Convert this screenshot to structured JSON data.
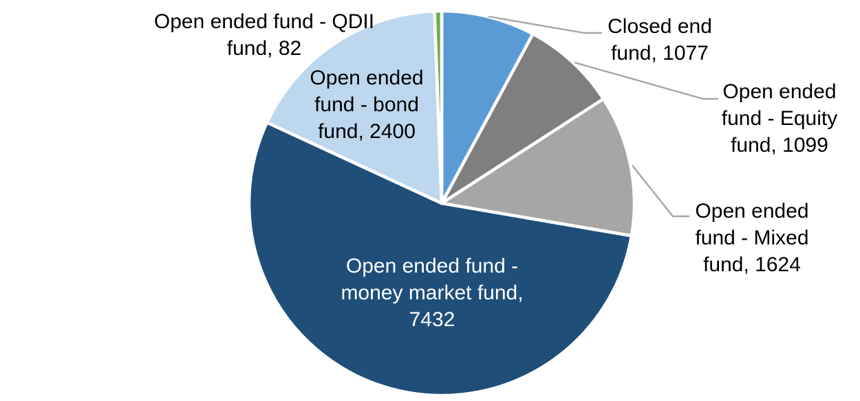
{
  "figure": {
    "background": "#FFFFFF",
    "text_color": "#000000"
  },
  "chart_data": {
    "type": "pie",
    "title": "",
    "start_angle_deg": 0,
    "direction": "clockwise",
    "slice_border_color": "#FFFFFF",
    "leader_line_color": "#A6A6A6",
    "legend": "none",
    "total": 13714,
    "slices": [
      {
        "key": "closed_end",
        "label": "Closed end fund",
        "value": 1077,
        "color": "#5B9BD5"
      },
      {
        "key": "equity",
        "label": "Open ended fund - Equity fund",
        "value": 1099,
        "color": "#7F7F7F"
      },
      {
        "key": "mixed",
        "label": "Open ended fund - Mixed fund",
        "value": 1624,
        "color": "#A6A6A6"
      },
      {
        "key": "money_market",
        "label": "Open ended fund - money market fund",
        "value": 7432,
        "color": "#1F4E79"
      },
      {
        "key": "bond",
        "label": "Open ended fund - bond fund",
        "value": 2400,
        "color": "#BDD7EE"
      },
      {
        "key": "qdii",
        "label": "Open ended fund - QDII fund",
        "value": 82,
        "color": "#70AD47"
      }
    ],
    "data_labels": {
      "qdii": {
        "lines": [
          "Open ended fund - QDII",
          "fund, 82"
        ],
        "color": "#000000"
      },
      "bond": {
        "lines": [
          "Open ended",
          "fund - bond",
          "fund, 2400"
        ],
        "color": "#000000"
      },
      "closed_end": {
        "lines": [
          "Closed end",
          "fund, 1077"
        ],
        "color": "#000000"
      },
      "equity": {
        "lines": [
          "Open ended",
          "fund - Equity",
          "fund, 1099"
        ],
        "color": "#000000"
      },
      "mixed": {
        "lines": [
          "Open ended",
          "fund - Mixed",
          "fund, 1624"
        ],
        "color": "#000000"
      },
      "money_market": {
        "lines": [
          "Open ended fund -",
          "money market fund,",
          "7432"
        ],
        "color": "#FFFFFF"
      }
    }
  }
}
